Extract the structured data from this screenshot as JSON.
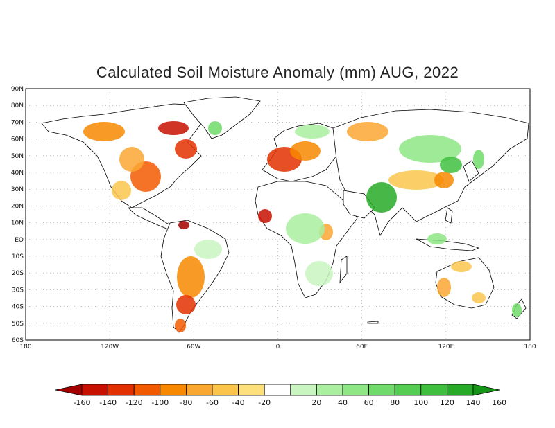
{
  "title": "Calculated Soil Moisture Anomaly (mm) AUG, 2022",
  "map": {
    "lat_ticks": [
      "90N",
      "80N",
      "70N",
      "60N",
      "50N",
      "40N",
      "30N",
      "20N",
      "10N",
      "EQ",
      "10S",
      "20S",
      "30S",
      "40S",
      "50S",
      "60S"
    ],
    "lon_ticks": [
      "180",
      "120W",
      "60W",
      "0",
      "60E",
      "120E",
      "180"
    ],
    "grid": true,
    "grid_style": "dotted"
  },
  "colorbar": {
    "labels": [
      "-160",
      "-140",
      "-120",
      "-100",
      "-80",
      "-60",
      "-40",
      "-20",
      "20",
      "40",
      "60",
      "80",
      "100",
      "120",
      "140",
      "160"
    ],
    "colors": [
      "#a50000",
      "#c81000",
      "#e33000",
      "#f25a00",
      "#f78800",
      "#faa732",
      "#fbc54c",
      "#fde07c",
      "#ffffff",
      "#c8f5c0",
      "#aaeea0",
      "#8ee685",
      "#70db6a",
      "#55cd52",
      "#3ebf3e",
      "#27aa27",
      "#169616"
    ]
  },
  "colors": {
    "land": "#ffffff",
    "coast": "#000000",
    "grid": "#999999"
  }
}
